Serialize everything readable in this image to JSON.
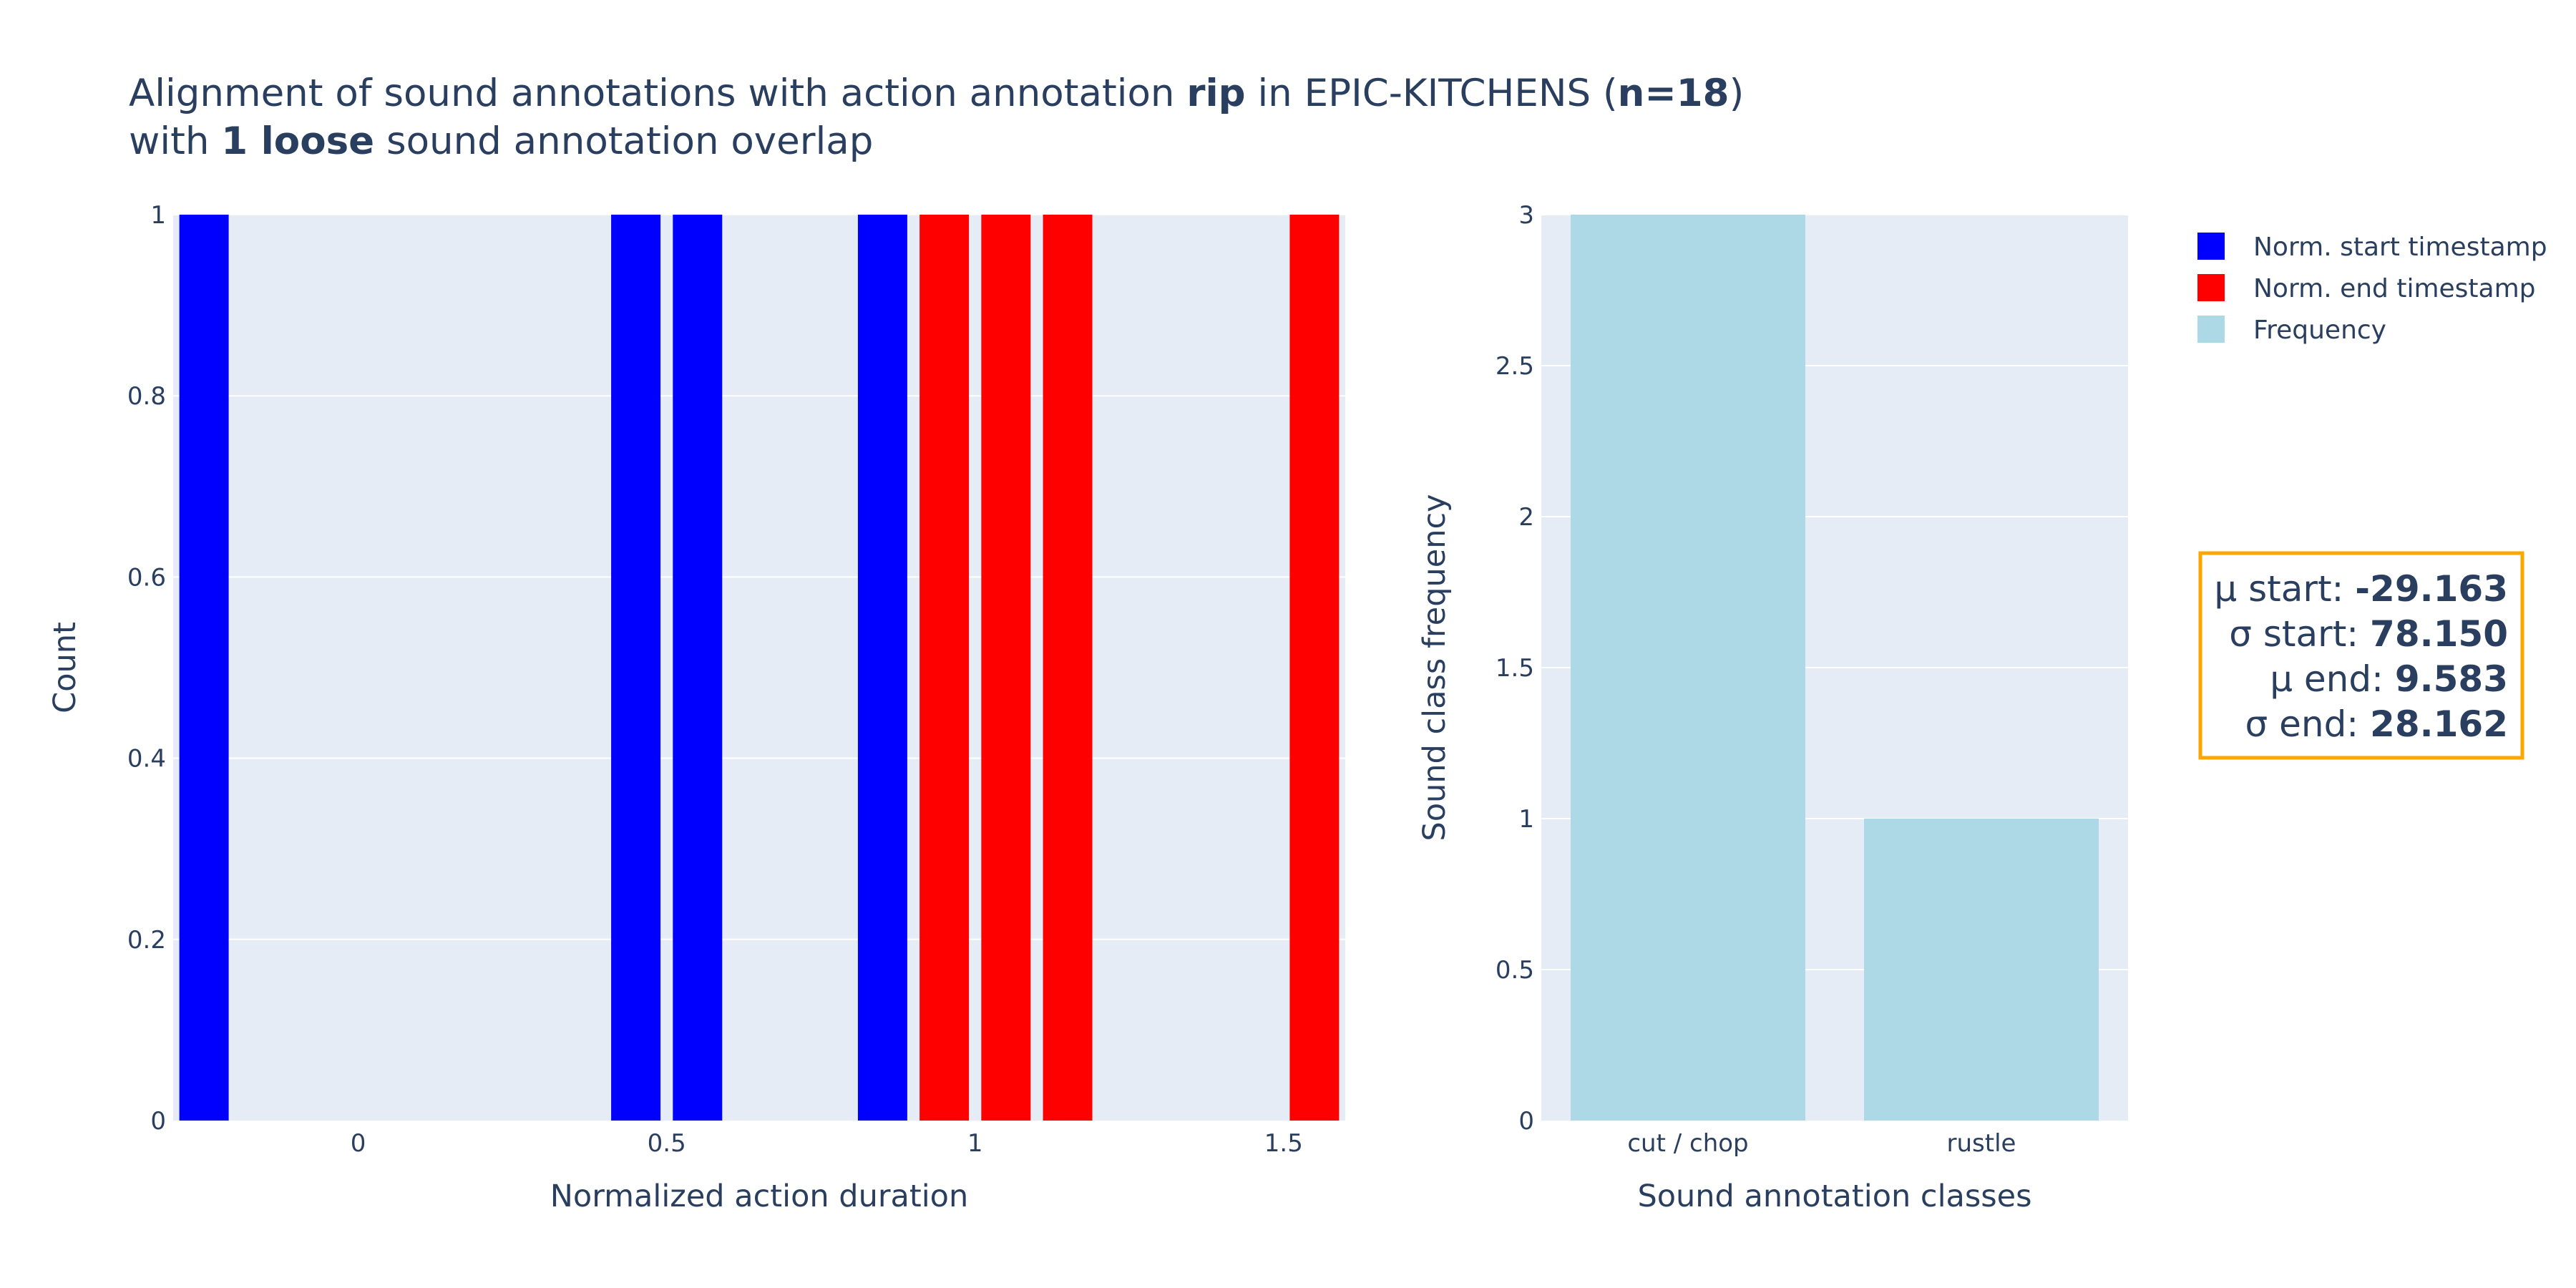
{
  "title": {
    "line1": {
      "prefix": "Alignment of sound annotations with action annotation ",
      "action": "rip",
      "middle": " in EPIC-KITCHENS (",
      "count": "n=18",
      "suffix": ")"
    },
    "line2": {
      "prefix": "with ",
      "overlap": "1 loose",
      "suffix": " sound annotation overlap"
    }
  },
  "chart_data": [
    {
      "type": "bar",
      "subtype": "histogram",
      "xlabel": "Normalized action duration",
      "ylabel": "Count",
      "xlim": [
        -0.3,
        1.6
      ],
      "ylim": [
        0,
        1
      ],
      "x_ticks": [
        0,
        0.5,
        1,
        1.5
      ],
      "x_tick_labels": [
        "0",
        "0.5",
        "1",
        "1.5"
      ],
      "y_ticks": [
        0,
        0.2,
        0.4,
        0.6,
        0.8,
        1
      ],
      "y_tick_labels": [
        "0",
        "0.2",
        "0.4",
        "0.6",
        "0.8",
        "1"
      ],
      "grid": true,
      "bin_width": 0.1,
      "series": [
        {
          "name": "Norm. start timestamp",
          "color": "#0000ff",
          "bins": [
            {
              "x": -0.25,
              "count": 1
            },
            {
              "x": 0.45,
              "count": 1
            },
            {
              "x": 0.55,
              "count": 1
            },
            {
              "x": 0.85,
              "count": 1
            }
          ]
        },
        {
          "name": "Norm. end timestamp",
          "color": "#ff0000",
          "bins": [
            {
              "x": 0.95,
              "count": 1
            },
            {
              "x": 1.05,
              "count": 1
            },
            {
              "x": 1.15,
              "count": 1
            },
            {
              "x": 1.55,
              "count": 1
            }
          ]
        }
      ]
    },
    {
      "type": "bar",
      "xlabel": "Sound annotation classes",
      "ylabel": "Sound class frequency",
      "categories": [
        "cut / chop",
        "rustle"
      ],
      "ylim": [
        0,
        3
      ],
      "y_ticks": [
        0,
        0.5,
        1,
        1.5,
        2,
        2.5,
        3
      ],
      "y_tick_labels": [
        "0",
        "0.5",
        "1",
        "1.5",
        "2",
        "2.5",
        "3"
      ],
      "grid": true,
      "series": [
        {
          "name": "Frequency",
          "color": "#add8e6",
          "values": [
            3,
            1
          ]
        }
      ]
    }
  ],
  "legend": {
    "placement": "top-right",
    "items": [
      {
        "label": "Norm. start timestamp",
        "color": "#0000ff"
      },
      {
        "label": "Norm. end timestamp",
        "color": "#ff0000"
      },
      {
        "label": "Frequency",
        "color": "#add8e6"
      }
    ]
  },
  "stats": {
    "border_color": "#ffa500",
    "rows": [
      {
        "label": "μ start: ",
        "value": "-29.163"
      },
      {
        "label": "σ start: ",
        "value": "78.150"
      },
      {
        "label": "μ end: ",
        "value": "9.583"
      },
      {
        "label": "σ end: ",
        "value": "28.162"
      }
    ]
  },
  "colors": {
    "plot_background": "#e5ecf6",
    "grid": "#ffffff",
    "text": "#2a3f5f"
  }
}
